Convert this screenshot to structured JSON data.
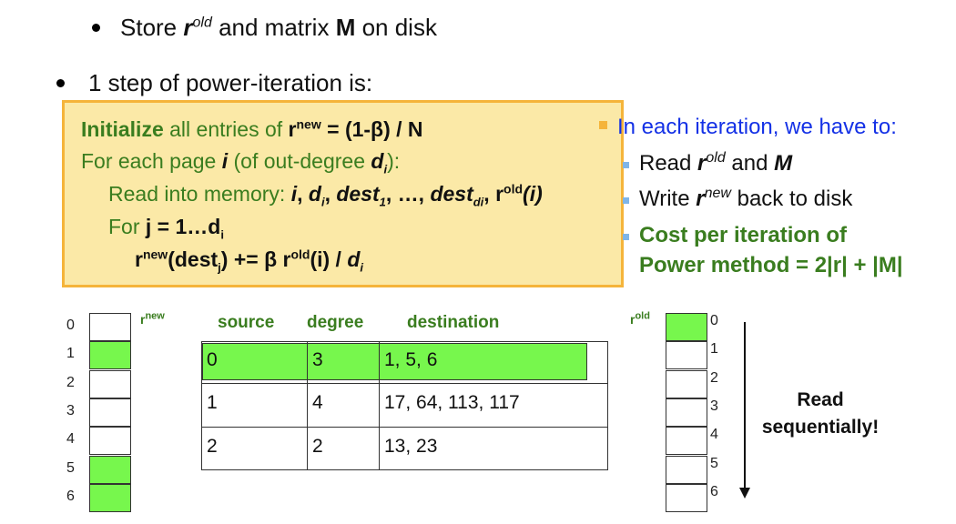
{
  "bullets": {
    "b1": {
      "pre": "Store ",
      "r": "r",
      "sup": "old",
      "mid": " and matrix ",
      "M": "M",
      "post": " on disk"
    },
    "b2": {
      "text": "1 step of power-iteration is:"
    }
  },
  "algorithm": {
    "line1": {
      "kw": "Initialize",
      "rest": " all entries of ",
      "r": "r",
      "sup": "new",
      "eq": " = (1-β) / N"
    },
    "line2": {
      "pre": "For each page ",
      "i": "i",
      "mid": " (of out-degree ",
      "d": "d",
      "sub": "i",
      "post": "):"
    },
    "line3": {
      "pre": "Read into memory: ",
      "i": "i",
      "c1": ", ",
      "d": "d",
      "dsub": "i",
      "c2": ", ",
      "dest1": "dest",
      "dest1sub": "1",
      "dots": ", …, ",
      "destd": "dest",
      "destdsub": "di",
      "c3": ", ",
      "r": "r",
      "rsup": "old",
      "ri": "(i)"
    },
    "line4": {
      "pre": "For ",
      "j": "j = 1…d",
      "jsub": "i"
    },
    "line5": {
      "r": "r",
      "sup": "new",
      "a": "(dest",
      "asub": "j",
      "b": ") += β ",
      "r2": "r",
      "sup2": "old",
      "c": "(i) / ",
      "d": "d",
      "dsub": "i"
    }
  },
  "iteration_list": {
    "head": "In each iteration, we have to:",
    "item1": {
      "pre": "Read ",
      "r": "r",
      "sup": "old",
      "mid": " and ",
      "M": "M"
    },
    "item2": {
      "pre": "Write ",
      "r": "r",
      "sup": "new",
      "post": " back to disk"
    },
    "item3": {
      "line1": "Cost per iteration of",
      "line2": "Power method = 2|r| + |M|"
    }
  },
  "rnew": {
    "name": "r",
    "sup": "new",
    "labels": [
      "0",
      "1",
      "2",
      "3",
      "4",
      "5",
      "6"
    ],
    "highlight": [
      false,
      true,
      false,
      false,
      false,
      true,
      true
    ]
  },
  "rold": {
    "name": "r",
    "sup": "old",
    "labels": [
      "0",
      "1",
      "2",
      "3",
      "4",
      "5",
      "6"
    ],
    "highlight": [
      true,
      false,
      false,
      false,
      false,
      false,
      false
    ]
  },
  "table": {
    "headers": [
      "source",
      "degree",
      "destination"
    ],
    "rows": [
      [
        "0",
        "3",
        "1, 5, 6"
      ],
      [
        "1",
        "4",
        "17, 64, 113, 117"
      ],
      [
        "2",
        "2",
        "13, 23"
      ]
    ]
  },
  "read_note": {
    "line1": "Read",
    "line2": "sequentially!"
  },
  "colors": {
    "green_text": "#3a7d1f",
    "blue_text": "#1431e6",
    "highlight": "#77f74d",
    "box_fill": "#fbe9a7",
    "box_border": "#f5b43a"
  }
}
